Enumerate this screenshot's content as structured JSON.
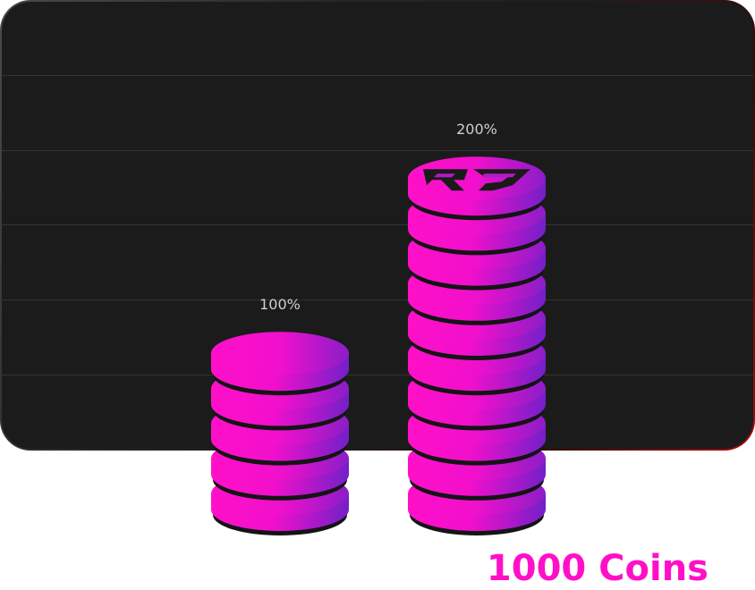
{
  "chart_data": {
    "type": "bar",
    "categories": [
      "100%",
      "200%"
    ],
    "values": [
      100,
      200
    ],
    "ylim": [
      0,
      200
    ],
    "data_labels": [
      "100%",
      "200%"
    ],
    "grid": true,
    "title": "",
    "xlabel": "",
    "ylabel": ""
  },
  "caption": "1000 Coins",
  "colors": {
    "accent_pink": "#ff10c8",
    "accent_purple": "#7320c8",
    "coin_edge": "#141414",
    "panel_bg": "#1b1b1b",
    "grid": "#333333",
    "label": "#cfcfcf"
  },
  "logo": {
    "icon": "rg-logo-icon"
  }
}
